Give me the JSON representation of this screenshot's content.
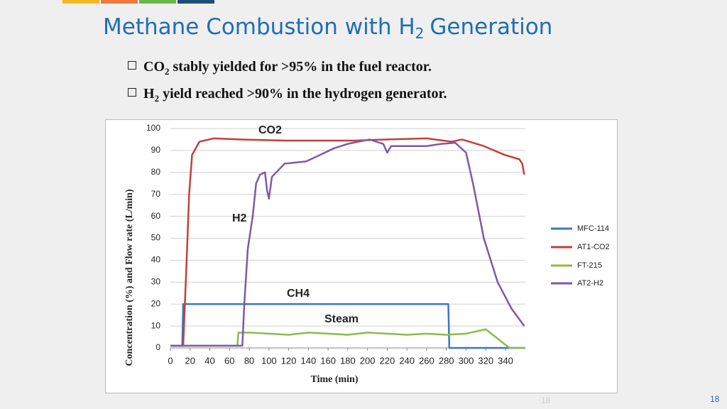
{
  "slide": {
    "title": [
      "Methane Combustion with H",
      "2",
      "Generation"
    ],
    "bullets": [
      [
        "CO",
        "2",
        "stably yielded for >95% in the fuel reactor."
      ],
      [
        "H",
        "2",
        "yield reached >90% in the hydrogen generator."
      ]
    ],
    "faint_number": "18",
    "page_number": "18"
  },
  "chart_data": {
    "type": "line",
    "x_label": "Time (min)",
    "y_label": "Concentration (%) and Flow rate (L/min)",
    "xlim": [
      0,
      360
    ],
    "ylim": [
      0,
      100
    ],
    "xticks": [
      0,
      20,
      40,
      60,
      80,
      100,
      120,
      140,
      160,
      180,
      200,
      220,
      240,
      260,
      280,
      300,
      320,
      340
    ],
    "yticks": [
      0,
      10,
      20,
      30,
      40,
      50,
      60,
      70,
      80,
      90,
      100
    ],
    "grid": true,
    "legend": "right",
    "annotations": [
      {
        "text": "CO2",
        "color": "#d9372b"
      },
      {
        "text": "H2",
        "color": "#d9372b"
      },
      {
        "text": "CH4",
        "color": "#d9372b"
      },
      {
        "text": "Steam",
        "color": "#d9372b"
      }
    ],
    "series": [
      {
        "name": "MFC-114",
        "color": "#3a78c2",
        "x": [
          0,
          12,
          13,
          282,
          283,
          360
        ],
        "values": [
          1,
          1,
          20,
          20,
          0,
          0
        ]
      },
      {
        "name": "AT1-CO2",
        "color": "#c0413b",
        "x": [
          0,
          12,
          13,
          16.5,
          19,
          22,
          29.5,
          44,
          73,
          116,
          188,
          217,
          260,
          285,
          296,
          318,
          339,
          354,
          357,
          359
        ],
        "values": [
          1,
          1,
          1,
          40,
          70,
          88,
          94,
          95.5,
          95,
          94.5,
          94.5,
          95,
          95.5,
          94,
          95,
          92,
          88,
          86,
          84,
          79
        ]
      },
      {
        "name": "FT-215",
        "color": "#8cbb4c",
        "x": [
          0,
          68,
          69,
          80,
          100,
          120,
          140,
          160,
          180,
          200,
          220,
          240,
          260,
          280,
          300,
          320,
          344,
          360
        ],
        "values": [
          1,
          1,
          7,
          7,
          6.5,
          6,
          7,
          6.5,
          6,
          7,
          6.5,
          6,
          6.5,
          6,
          6.5,
          8.5,
          0,
          0
        ]
      },
      {
        "name": "AT2-H2",
        "color": "#7b5ba6",
        "x": [
          0,
          73,
          75,
          78.5,
          83.5,
          87,
          91,
          96,
          98,
          100,
          103,
          116,
          137.6,
          152,
          166,
          180,
          202,
          216,
          220,
          224,
          260,
          275,
          289,
          300,
          307,
          318,
          332,
          346,
          359
        ],
        "values": [
          1,
          1,
          20,
          45,
          60,
          75,
          79,
          80,
          72,
          68,
          78,
          84,
          85,
          88,
          91,
          93,
          95,
          93,
          89,
          92,
          92,
          93,
          93.5,
          89,
          75,
          50,
          30,
          18,
          10
        ]
      }
    ]
  }
}
